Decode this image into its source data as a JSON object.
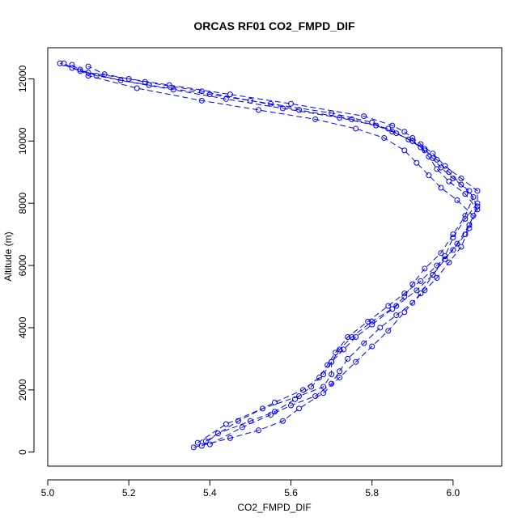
{
  "chart_data": {
    "type": "scatter",
    "title": "ORCAS RF01 CO2_FMPD_DIF",
    "xlabel": "CO2_FMPD_DIF",
    "ylabel": "Altitude (m)",
    "xlim": [
      5.0,
      6.12
    ],
    "ylim": [
      -450,
      13000
    ],
    "xticks": [
      "5.0",
      "5.2",
      "5.4",
      "5.6",
      "5.8",
      "6.0"
    ],
    "xtick_values": [
      5.0,
      5.2,
      5.4,
      5.6,
      5.8,
      6.0
    ],
    "yticks": [
      "0",
      "2000",
      "4000",
      "6000",
      "8000",
      "10000",
      "12000"
    ],
    "ytick_values": [
      0,
      2000,
      4000,
      6000,
      8000,
      10000,
      12000
    ],
    "grid": false,
    "legend": "none",
    "marker": "open-circle",
    "color": "#0000ff",
    "series": [
      {
        "x": [
          5.36,
          5.45,
          5.52,
          5.58,
          5.62,
          5.68,
          5.72,
          5.76,
          5.8,
          5.84,
          5.88,
          5.92,
          5.95,
          5.98,
          6.0,
          6.03,
          6.06,
          6.06,
          6.02,
          5.98,
          5.95,
          5.92,
          5.9,
          5.88,
          5.85,
          5.78,
          5.6,
          5.45,
          5.3,
          5.2,
          5.1,
          5.06,
          5.04
        ],
        "y": [
          150,
          450,
          700,
          1000,
          1400,
          1900,
          2400,
          2900,
          3400,
          3900,
          4500,
          5100,
          5700,
          6300,
          6900,
          7500,
          8000,
          8400,
          8800,
          9200,
          9600,
          9900,
          10100,
          10300,
          10500,
          10800,
          11200,
          11500,
          11800,
          12000,
          12200,
          12350,
          12500
        ]
      },
      {
        "x": [
          5.38,
          5.42,
          5.5,
          5.56,
          5.61,
          5.65,
          5.68,
          5.7,
          5.73,
          5.76,
          5.8,
          5.85,
          5.88,
          5.9,
          5.93,
          5.97,
          6.0,
          6.03,
          6.05,
          6.02,
          5.99,
          5.96,
          5.93,
          5.9,
          5.85,
          5.8,
          5.7,
          5.55,
          5.4,
          5.25,
          5.12,
          5.08
        ],
        "y": [
          200,
          600,
          1000,
          1300,
          1700,
          2100,
          2500,
          2900,
          3300,
          3700,
          4100,
          4600,
          5000,
          5400,
          5900,
          6400,
          7000,
          7600,
          8200,
          8600,
          9000,
          9400,
          9700,
          10000,
          10300,
          10600,
          10900,
          11200,
          11500,
          11800,
          12100,
          12300
        ]
      },
      {
        "x": [
          5.4,
          5.48,
          5.55,
          5.6,
          5.66,
          5.7,
          5.72,
          5.74,
          5.78,
          5.82,
          5.86,
          5.9,
          5.93,
          5.96,
          5.99,
          6.02,
          6.04,
          6.06,
          6.03,
          5.99,
          5.96,
          5.94,
          5.92,
          5.89,
          5.84,
          5.75,
          5.62,
          5.5,
          5.38,
          5.24,
          5.14,
          5.1
        ],
        "y": [
          250,
          800,
          1200,
          1500,
          1800,
          2200,
          2600,
          3000,
          3500,
          4000,
          4400,
          4800,
          5200,
          5600,
          6100,
          6600,
          7200,
          7800,
          8300,
          8700,
          9100,
          9500,
          9800,
          10050,
          10400,
          10700,
          11000,
          11300,
          11600,
          11900,
          12150,
          12400
        ]
      },
      {
        "x": [
          5.37,
          5.44,
          5.53,
          5.62,
          5.68,
          5.7,
          5.7,
          5.72,
          5.75,
          5.8,
          5.86,
          5.91,
          5.95,
          5.98,
          6.01,
          6.04,
          6.06,
          6.04,
          6.0,
          5.97,
          5.95,
          5.93,
          5.9,
          5.86,
          5.81,
          5.72,
          5.58,
          5.44,
          5.31,
          5.18,
          5.08,
          5.03
        ],
        "y": [
          300,
          900,
          1400,
          1800,
          2100,
          2500,
          2900,
          3300,
          3700,
          4200,
          4700,
          5200,
          5700,
          6200,
          6700,
          7300,
          7900,
          8400,
          8800,
          9150,
          9450,
          9750,
          10000,
          10250,
          10500,
          10750,
          11050,
          11350,
          11650,
          11950,
          12250,
          12500
        ]
      },
      {
        "x": [
          5.39,
          5.47,
          5.56,
          5.63,
          5.67,
          5.69,
          5.71,
          5.74,
          5.79,
          5.84,
          5.88,
          5.92,
          5.96,
          6.0,
          6.03,
          6.05,
          6.01,
          5.97,
          5.94,
          5.91,
          5.88,
          5.83,
          5.76,
          5.66,
          5.52,
          5.38,
          5.22,
          5.1,
          5.06
        ],
        "y": [
          350,
          1000,
          1600,
          2000,
          2400,
          2800,
          3200,
          3700,
          4200,
          4700,
          5100,
          5500,
          6000,
          6500,
          7000,
          7600,
          8100,
          8500,
          8900,
          9300,
          9700,
          10100,
          10400,
          10700,
          11000,
          11300,
          11700,
          12100,
          12450
        ]
      }
    ]
  }
}
